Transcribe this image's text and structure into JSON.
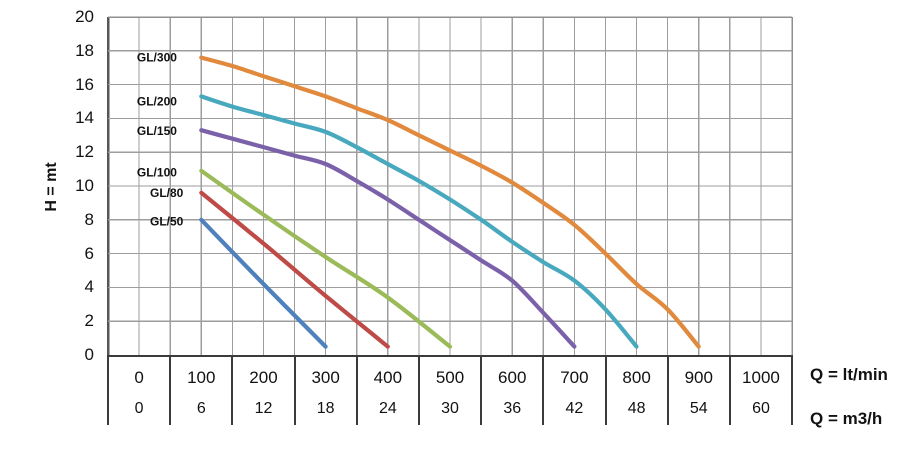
{
  "chart_data": {
    "type": "line",
    "title": "",
    "y_axis": {
      "label": "H = mt",
      "min": 0,
      "max": 20,
      "tick_step": 2,
      "ticks": [
        20,
        18,
        16,
        14,
        12,
        10,
        8,
        6,
        4,
        2,
        0
      ]
    },
    "x_axis": {
      "min": -50,
      "max": 1050,
      "grid_step": 50,
      "primary_label": "Q = lt/min",
      "secondary_label": "Q = m3/h",
      "primary_ticks": [
        0,
        100,
        200,
        300,
        400,
        500,
        600,
        700,
        800,
        900,
        1000
      ],
      "secondary_ticks": [
        0,
        6,
        12,
        18,
        24,
        30,
        36,
        42,
        48,
        54,
        60
      ]
    },
    "grid": true,
    "legend": "inline-labels-left-of-curves",
    "series": [
      {
        "name": "GL/300",
        "color": "#E1893C",
        "label_anchor": [
          -3.5,
          17.6
        ],
        "points": [
          [
            100,
            17.6
          ],
          [
            150,
            17.1
          ],
          [
            200,
            16.5
          ],
          [
            250,
            15.9
          ],
          [
            300,
            15.3
          ],
          [
            350,
            14.6
          ],
          [
            400,
            13.9
          ],
          [
            450,
            13.0
          ],
          [
            500,
            12.1
          ],
          [
            550,
            11.2
          ],
          [
            600,
            10.2
          ],
          [
            650,
            9.0
          ],
          [
            700,
            7.7
          ],
          [
            750,
            6.0
          ],
          [
            800,
            4.2
          ],
          [
            850,
            2.7
          ],
          [
            900,
            0.5
          ]
        ]
      },
      {
        "name": "GL/200",
        "color": "#47A8BE",
        "label_anchor": [
          -3.5,
          15.0
        ],
        "points": [
          [
            100,
            15.3
          ],
          [
            150,
            14.7
          ],
          [
            200,
            14.2
          ],
          [
            250,
            13.7
          ],
          [
            300,
            13.2
          ],
          [
            350,
            12.3
          ],
          [
            400,
            11.3
          ],
          [
            450,
            10.3
          ],
          [
            500,
            9.2
          ],
          [
            550,
            8.0
          ],
          [
            600,
            6.7
          ],
          [
            650,
            5.5
          ],
          [
            700,
            4.4
          ],
          [
            750,
            2.7
          ],
          [
            800,
            0.5
          ]
        ]
      },
      {
        "name": "GL/150",
        "color": "#7A61A9",
        "label_anchor": [
          -3.5,
          13.25
        ],
        "points": [
          [
            100,
            13.3
          ],
          [
            150,
            12.8
          ],
          [
            200,
            12.3
          ],
          [
            250,
            11.8
          ],
          [
            300,
            11.3
          ],
          [
            350,
            10.3
          ],
          [
            400,
            9.2
          ],
          [
            450,
            8.0
          ],
          [
            500,
            6.8
          ],
          [
            550,
            5.6
          ],
          [
            600,
            4.4
          ],
          [
            650,
            2.5
          ],
          [
            700,
            0.5
          ]
        ]
      },
      {
        "name": "GL/100",
        "color": "#9BBB59",
        "label_anchor": [
          -3.5,
          10.8
        ],
        "points": [
          [
            100,
            10.9
          ],
          [
            200,
            8.3
          ],
          [
            300,
            5.8
          ],
          [
            400,
            3.4
          ],
          [
            500,
            0.5
          ]
        ]
      },
      {
        "name": "GL/80",
        "color": "#BE4B48",
        "label_anchor": [
          17.5,
          9.6
        ],
        "points": [
          [
            100,
            9.6
          ],
          [
            200,
            6.6
          ],
          [
            300,
            3.5
          ],
          [
            400,
            0.5
          ]
        ]
      },
      {
        "name": "GL/50",
        "color": "#4F81BD",
        "label_anchor": [
          17.5,
          7.9
        ],
        "points": [
          [
            100,
            8.0
          ],
          [
            200,
            4.2
          ],
          [
            300,
            0.5
          ]
        ]
      }
    ],
    "style": {
      "grid_color": "#9D9D9D",
      "plot_border_color": "#8F8F8F",
      "left_border_color": "#565656",
      "table_border_color": "#3B3B3B",
      "text_color": "#121212"
    }
  }
}
